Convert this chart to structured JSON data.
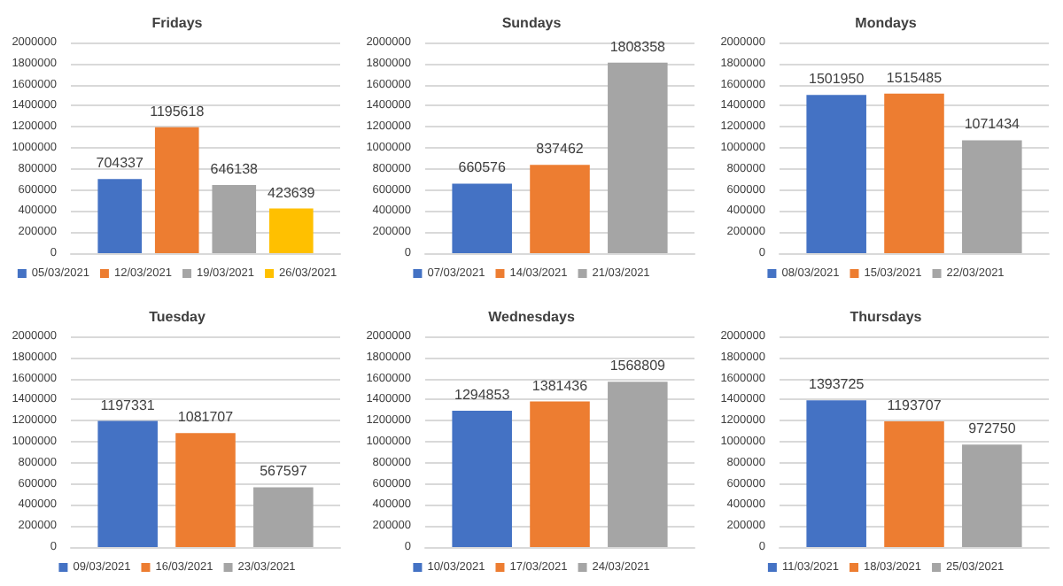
{
  "chart_data": [
    {
      "type": "bar",
      "title": "Fridays",
      "categories": [
        null
      ],
      "ylim": [
        0,
        2000000
      ],
      "yticks": [
        0,
        200000,
        400000,
        600000,
        800000,
        1000000,
        1200000,
        1400000,
        1600000,
        1800000,
        2000000
      ],
      "grid": "y",
      "legend": "bottom",
      "data_labels": true,
      "series": [
        {
          "name": "05/03/2021",
          "color": "#4472c4",
          "values": [
            704337
          ]
        },
        {
          "name": "12/03/2021",
          "color": "#ed7d31",
          "values": [
            1195618
          ]
        },
        {
          "name": "19/03/2021",
          "color": "#a5a5a5",
          "values": [
            646138
          ]
        },
        {
          "name": "26/03/2021",
          "color": "#ffc000",
          "values": [
            423639
          ]
        }
      ]
    },
    {
      "type": "bar",
      "title": "Sundays",
      "categories": [
        null
      ],
      "ylim": [
        0,
        2000000
      ],
      "yticks": [
        0,
        200000,
        400000,
        600000,
        800000,
        1000000,
        1200000,
        1400000,
        1600000,
        1800000,
        2000000
      ],
      "grid": "y",
      "legend": "bottom",
      "data_labels": true,
      "series": [
        {
          "name": "07/03/2021",
          "color": "#4472c4",
          "values": [
            660576
          ]
        },
        {
          "name": "14/03/2021",
          "color": "#ed7d31",
          "values": [
            837462
          ]
        },
        {
          "name": "21/03/2021",
          "color": "#a5a5a5",
          "values": [
            1808358
          ]
        }
      ]
    },
    {
      "type": "bar",
      "title": "Mondays",
      "categories": [
        null
      ],
      "ylim": [
        0,
        2000000
      ],
      "yticks": [
        0,
        200000,
        400000,
        600000,
        800000,
        1000000,
        1200000,
        1400000,
        1600000,
        1800000,
        2000000
      ],
      "grid": "y",
      "legend": "bottom",
      "data_labels": true,
      "series": [
        {
          "name": "08/03/2021",
          "color": "#4472c4",
          "values": [
            1501950
          ]
        },
        {
          "name": "15/03/2021",
          "color": "#ed7d31",
          "values": [
            1515485
          ]
        },
        {
          "name": "22/03/2021",
          "color": "#a5a5a5",
          "values": [
            1071434
          ]
        }
      ]
    },
    {
      "type": "bar",
      "title": "Tuesday",
      "categories": [
        null
      ],
      "ylim": [
        0,
        2000000
      ],
      "yticks": [
        0,
        200000,
        400000,
        600000,
        800000,
        1000000,
        1200000,
        1400000,
        1600000,
        1800000,
        2000000
      ],
      "grid": "y",
      "legend": "bottom",
      "data_labels": true,
      "series": [
        {
          "name": "09/03/2021",
          "color": "#4472c4",
          "values": [
            1197331
          ]
        },
        {
          "name": "16/03/2021",
          "color": "#ed7d31",
          "values": [
            1081707
          ]
        },
        {
          "name": "23/03/2021",
          "color": "#a5a5a5",
          "values": [
            567597
          ]
        }
      ]
    },
    {
      "type": "bar",
      "title": "Wednesdays",
      "categories": [
        null
      ],
      "ylim": [
        0,
        2000000
      ],
      "yticks": [
        0,
        200000,
        400000,
        600000,
        800000,
        1000000,
        1200000,
        1400000,
        1600000,
        1800000,
        2000000
      ],
      "grid": "y",
      "legend": "bottom",
      "data_labels": true,
      "series": [
        {
          "name": "10/03/2021",
          "color": "#4472c4",
          "values": [
            1294853
          ]
        },
        {
          "name": "17/03/2021",
          "color": "#ed7d31",
          "values": [
            1381436
          ]
        },
        {
          "name": "24/03/2021",
          "color": "#a5a5a5",
          "values": [
            1568809
          ]
        }
      ]
    },
    {
      "type": "bar",
      "title": "Thursdays",
      "categories": [
        null
      ],
      "ylim": [
        0,
        2000000
      ],
      "yticks": [
        0,
        200000,
        400000,
        600000,
        800000,
        1000000,
        1200000,
        1400000,
        1600000,
        1800000,
        2000000
      ],
      "grid": "y",
      "legend": "bottom",
      "data_labels": true,
      "series": [
        {
          "name": "11/03/2021",
          "color": "#4472c4",
          "values": [
            1393725
          ]
        },
        {
          "name": "18/03/2021",
          "color": "#ed7d31",
          "values": [
            1193707
          ]
        },
        {
          "name": "25/03/2021",
          "color": "#a5a5a5",
          "values": [
            972750
          ]
        }
      ]
    }
  ]
}
